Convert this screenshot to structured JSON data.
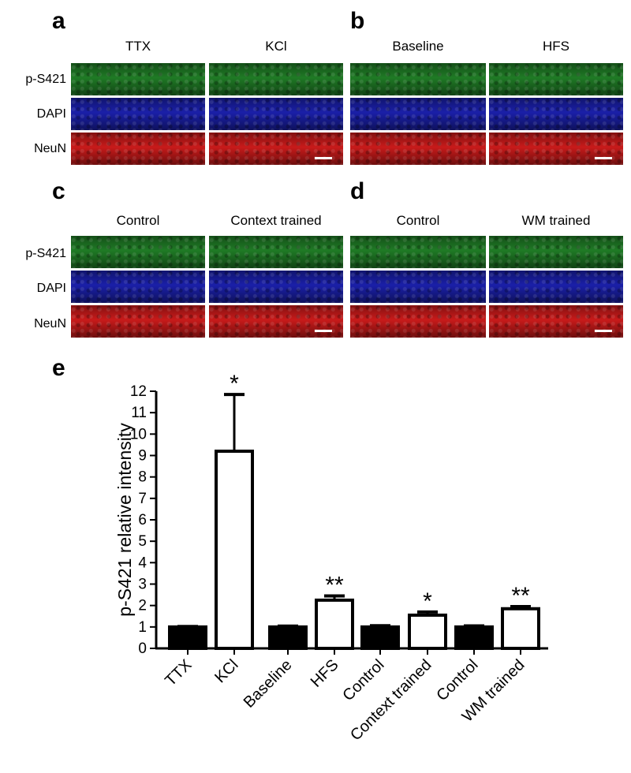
{
  "panels": {
    "a": {
      "letter": "a",
      "cols": [
        "TTX",
        "KCl"
      ]
    },
    "b": {
      "letter": "b",
      "cols": [
        "Baseline",
        "HFS"
      ]
    },
    "c": {
      "letter": "c",
      "cols": [
        "Control",
        "Context trained"
      ]
    },
    "d": {
      "letter": "d",
      "cols": [
        "Control",
        "WM trained"
      ]
    },
    "e": {
      "letter": "e"
    }
  },
  "rows": [
    "p-S421",
    "DAPI",
    "NeuN"
  ],
  "colors": {
    "green": "#1f7a25",
    "blue": "#1a1fa8",
    "red": "#c81a1a"
  },
  "chart_data": {
    "type": "bar",
    "ylabel": "p-S421 relative intensity",
    "ylim": [
      0,
      12
    ],
    "yticks": [
      0,
      1,
      2,
      3,
      4,
      5,
      6,
      7,
      8,
      9,
      10,
      11,
      12
    ],
    "categories": [
      "TTX",
      "KCl",
      "Baseline",
      "HFS",
      "Control",
      "Context trained",
      "Control",
      "WM trained"
    ],
    "values": [
      1.0,
      9.2,
      1.0,
      2.25,
      1.0,
      1.55,
      1.0,
      1.85
    ],
    "errors": [
      0.02,
      2.65,
      0.04,
      0.2,
      0.06,
      0.15,
      0.05,
      0.1
    ],
    "fill": [
      "black",
      "white",
      "black",
      "white",
      "black",
      "white",
      "black",
      "white"
    ],
    "significance": [
      "",
      "*",
      "",
      "**",
      "",
      "*",
      "",
      "**"
    ]
  }
}
